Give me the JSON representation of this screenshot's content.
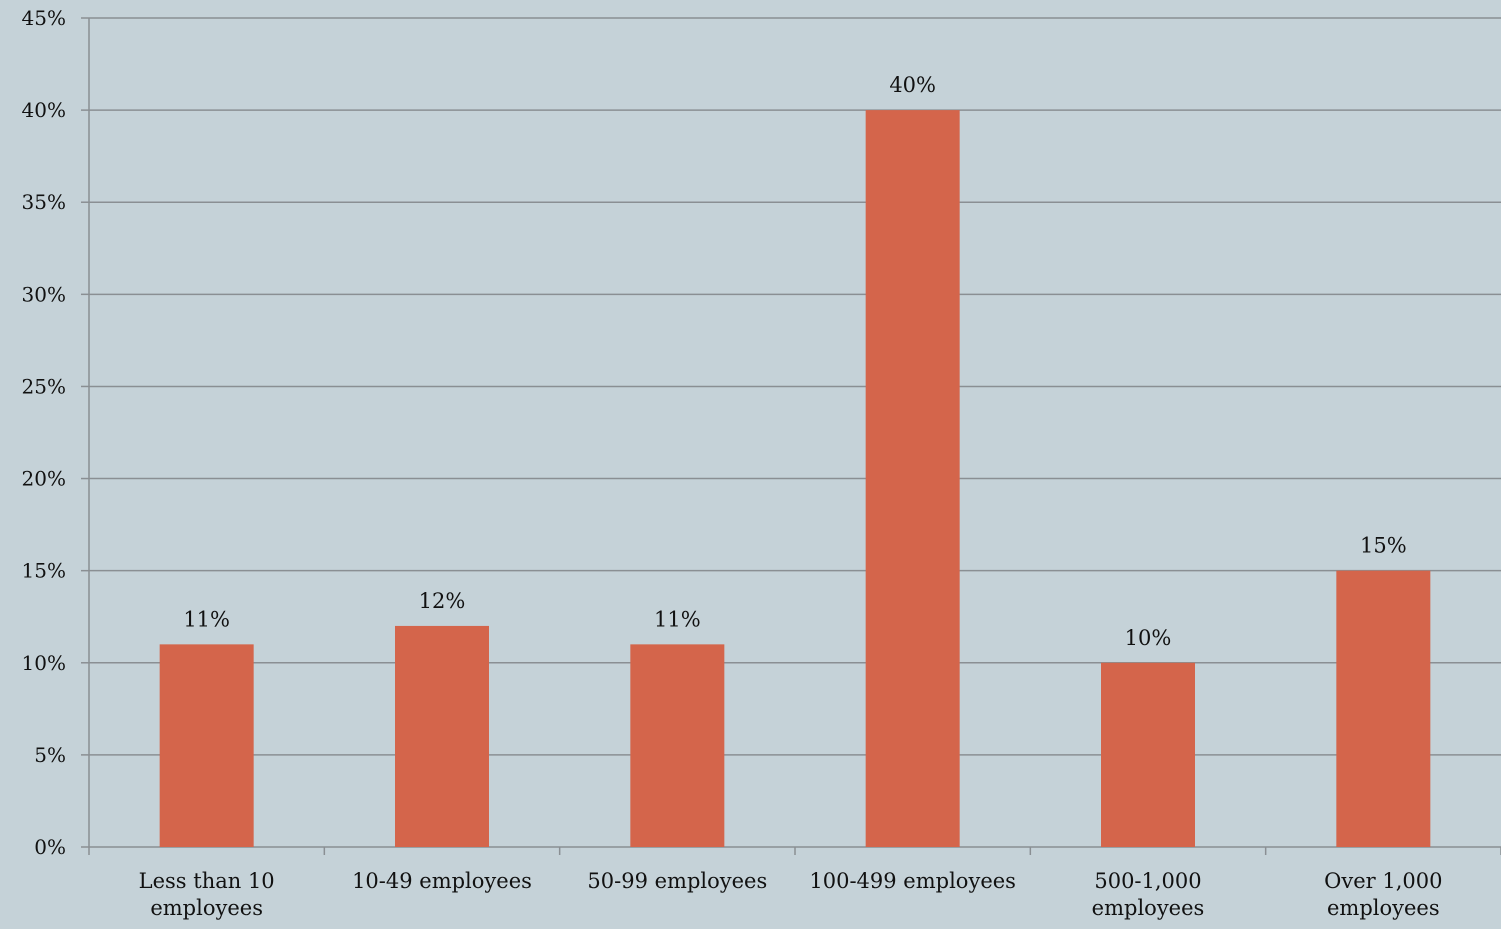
{
  "chart_data": {
    "type": "bar",
    "title": "",
    "xlabel": "",
    "ylabel": "",
    "categories": [
      [
        "Less than 10",
        "employees"
      ],
      [
        "10-49 employees"
      ],
      [
        "50-99 employees"
      ],
      [
        "100-499 employees"
      ],
      [
        "500-1,000",
        "employees"
      ],
      [
        "Over 1,000",
        "employees"
      ]
    ],
    "series": [
      {
        "values": [
          11,
          12,
          11,
          40,
          10,
          15
        ]
      }
    ],
    "data_labels": [
      "11%",
      "12%",
      "11%",
      "40%",
      "10%",
      "15%"
    ],
    "ylim": [
      0,
      45
    ],
    "yticks": [
      0,
      5,
      10,
      15,
      20,
      25,
      30,
      35,
      40,
      45
    ],
    "ytick_labels": [
      "0%",
      "5%",
      "10%",
      "15%",
      "20%",
      "25%",
      "30%",
      "35%",
      "40%",
      "45%"
    ],
    "grid": true,
    "legend": "none",
    "colors": {
      "background": "#c5d2d8",
      "bar": "#d4654b",
      "gridline": "#8a8f93",
      "axis": "#8a8f93",
      "text": "#111111"
    }
  }
}
